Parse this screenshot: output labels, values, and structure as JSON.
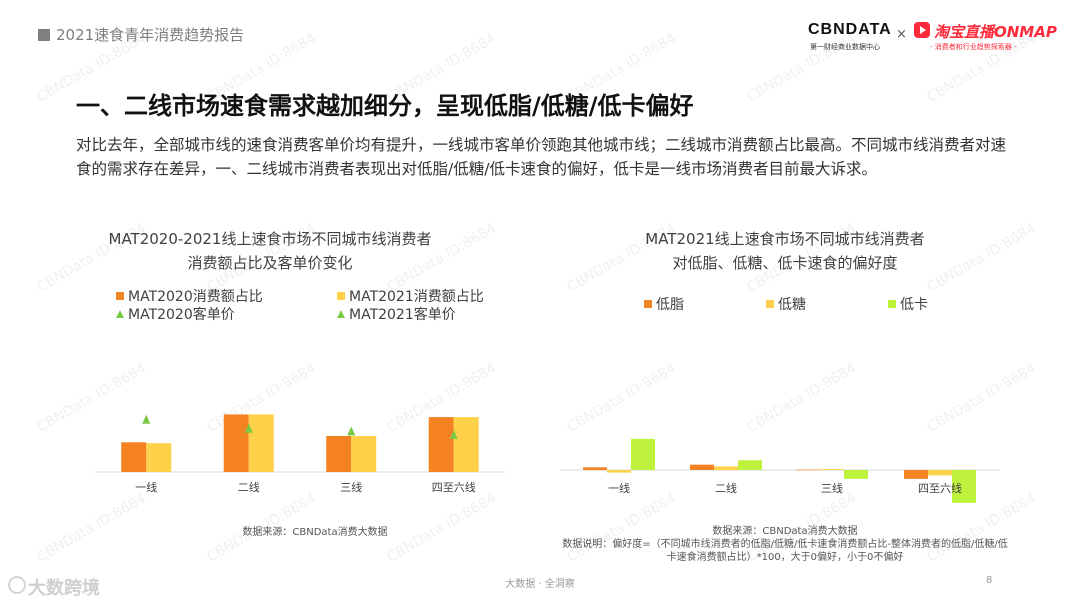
{
  "header": {
    "report_title": "2021速食青年消费趋势报告",
    "logo_cbn": "CBNDATA",
    "logo_cbn_sub": "第一财经商业数据中心",
    "logo_sep": "×",
    "logo_tb": "淘宝直播ONMAP",
    "logo_tb_sub": "- 消费者和行业趋势探索器 -"
  },
  "main_title": "一、二线市场速食需求越加细分，呈现低脂/低糖/低卡偏好",
  "description": "对比去年，全部城市线的速食消费客单价均有提升，一线城市客单价领跑其他城市线；二线城市消费额占比最高。不同城市线消费者对速食的需求存在差异，一、二线城市消费者表现出对低脂/低糖/低卡速食的偏好，低卡是一线市场消费者目前最大诉求。",
  "watermark": "CBNData ID:8684",
  "footer": {
    "center": "大数据 · 全洞察",
    "page": "8",
    "brand": "大数跨境"
  },
  "colors": {
    "orange": "#f58220",
    "yellow": "#ffd04a",
    "green_tri": "#7ac943",
    "lime": "#bff23c",
    "axis": "#d9d9d9"
  },
  "chart_data": [
    {
      "type": "bar",
      "title_line1": "MAT2020-2021线上速食市场不同城市线消费者",
      "title_line2": "消费额占比及客单价变化",
      "categories": [
        "一线",
        "二线",
        "三线",
        "四至六线"
      ],
      "series": [
        {
          "name": "MAT2020消费额占比",
          "kind": "bar",
          "color": "#f58220",
          "values": [
            33,
            64,
            40,
            61
          ]
        },
        {
          "name": "MAT2021消费额占比",
          "kind": "bar",
          "color": "#ffd04a",
          "values": [
            32,
            64,
            40,
            61
          ]
        },
        {
          "name": "MAT2020客单价",
          "kind": "marker",
          "color": "#7ac943",
          "values": [
            null,
            null,
            null,
            null
          ]
        },
        {
          "name": "MAT2021客单价",
          "kind": "marker",
          "color": "#7ac943",
          "values": [
            57,
            47,
            44,
            40
          ]
        }
      ],
      "ylim": [
        0,
        100
      ],
      "grid": false,
      "legend": "top",
      "source": "数据来源：CBNData消费大数据"
    },
    {
      "type": "bar",
      "title_line1": "MAT2021线上速食市场不同城市线消费者",
      "title_line2": "对低脂、低糖、低卡速食的偏好度",
      "categories": [
        "一线",
        "二线",
        "三线",
        "四至六线"
      ],
      "series": [
        {
          "name": "低脂",
          "color": "#f58220",
          "values": [
            3,
            6,
            0.5,
            -10
          ]
        },
        {
          "name": "低糖",
          "color": "#ffd04a",
          "values": [
            -3,
            4,
            1,
            -6
          ]
        },
        {
          "name": "低卡",
          "color": "#bff23c",
          "values": [
            35,
            11,
            -10,
            -37
          ]
        }
      ],
      "ylim": [
        -45,
        45
      ],
      "grid": false,
      "legend": "top",
      "source": "数据来源：CBNData消费大数据",
      "note": "数据说明：偏好度=（不同城市线消费者的低脂/低糖/低卡速食消费额占比-整体消费者的低脂/低糖/低卡速食消费额占比）*100，大于0偏好，小于0不偏好"
    }
  ]
}
